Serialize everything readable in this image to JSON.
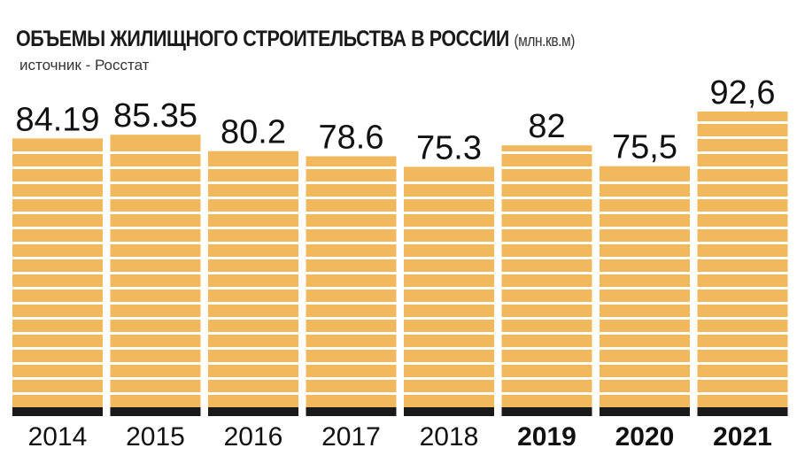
{
  "title": "ОБЪЕМЫ ЖИЛИЩНОГО СТРОИТЕЛЬСТВА В РОССИИ",
  "title_units": "(млн.кв.м)",
  "source": "источник - Росстат",
  "colors": {
    "bar": "#F2B85E",
    "stripe": "#FFFFFF",
    "base": "#1A1A1A"
  },
  "chart_data": {
    "type": "bar",
    "title": "ОБЪЕМЫ ЖИЛИЩНОГО СТРОИТЕЛЬСТВА В РОССИИ (млн.кв.м)",
    "subtitle": "источник - Росстат",
    "categories": [
      "2014",
      "2015",
      "2016",
      "2017",
      "2018",
      "2019",
      "2020",
      "2021"
    ],
    "values": [
      84.19,
      85.35,
      80.2,
      78.6,
      75.3,
      82,
      75.5,
      92.6
    ],
    "value_labels": [
      "84.19",
      "85.35",
      "80.2",
      "78.6",
      "75.3",
      "82",
      "75,5",
      "92,6"
    ],
    "bold_categories": [
      "2019",
      "2020",
      "2021"
    ],
    "ylim": [
      0,
      92.6
    ],
    "grid": false,
    "legend": "none"
  }
}
